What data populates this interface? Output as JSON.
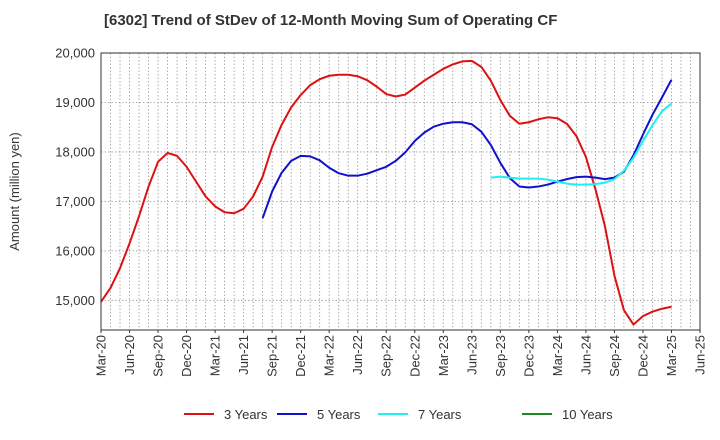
{
  "chart_data": {
    "type": "line",
    "title": "[6302]  Trend of StDev of 12-Month Moving Sum of Operating CF",
    "xlabel": "",
    "ylabel": "Amount (million yen)",
    "ylim": [
      14400,
      20000
    ],
    "yticks": [
      15000,
      16000,
      17000,
      18000,
      19000,
      20000
    ],
    "ytick_labels": [
      "15,000",
      "16,000",
      "17,000",
      "18,000",
      "19,000",
      "20,000"
    ],
    "xticks": [
      "Mar-20",
      "Jun-20",
      "Sep-20",
      "Dec-20",
      "Mar-21",
      "Jun-21",
      "Sep-21",
      "Dec-21",
      "Mar-22",
      "Jun-22",
      "Sep-22",
      "Dec-22",
      "Mar-23",
      "Jun-23",
      "Sep-23",
      "Dec-23",
      "Mar-24",
      "Jun-24",
      "Sep-24",
      "Dec-24",
      "Mar-25",
      "Jun-25"
    ],
    "x_start": "2020-03",
    "x_end": "2025-06",
    "grid": true,
    "legend_position": "bottom",
    "series": [
      {
        "name": "3 Years",
        "color": "#dd1111",
        "points": [
          [
            "2020-03",
            14970
          ],
          [
            "2020-04",
            15250
          ],
          [
            "2020-05",
            15650
          ],
          [
            "2020-06",
            16150
          ],
          [
            "2020-07",
            16700
          ],
          [
            "2020-08",
            17300
          ],
          [
            "2020-09",
            17800
          ],
          [
            "2020-10",
            17980
          ],
          [
            "2020-11",
            17920
          ],
          [
            "2020-12",
            17700
          ],
          [
            "2021-01",
            17400
          ],
          [
            "2021-02",
            17100
          ],
          [
            "2021-03",
            16900
          ],
          [
            "2021-04",
            16780
          ],
          [
            "2021-05",
            16760
          ],
          [
            "2021-06",
            16850
          ],
          [
            "2021-07",
            17100
          ],
          [
            "2021-08",
            17500
          ],
          [
            "2021-09",
            18100
          ],
          [
            "2021-10",
            18550
          ],
          [
            "2021-11",
            18900
          ],
          [
            "2021-12",
            19150
          ],
          [
            "2022-01",
            19350
          ],
          [
            "2022-02",
            19470
          ],
          [
            "2022-03",
            19540
          ],
          [
            "2022-04",
            19560
          ],
          [
            "2022-05",
            19560
          ],
          [
            "2022-06",
            19530
          ],
          [
            "2022-07",
            19450
          ],
          [
            "2022-08",
            19320
          ],
          [
            "2022-09",
            19170
          ],
          [
            "2022-10",
            19120
          ],
          [
            "2022-11",
            19160
          ],
          [
            "2022-12",
            19300
          ],
          [
            "2023-01",
            19440
          ],
          [
            "2023-02",
            19560
          ],
          [
            "2023-03",
            19680
          ],
          [
            "2023-04",
            19770
          ],
          [
            "2023-05",
            19830
          ],
          [
            "2023-06",
            19840
          ],
          [
            "2023-07",
            19720
          ],
          [
            "2023-08",
            19440
          ],
          [
            "2023-09",
            19050
          ],
          [
            "2023-10",
            18730
          ],
          [
            "2023-11",
            18570
          ],
          [
            "2023-12",
            18600
          ],
          [
            "2024-01",
            18660
          ],
          [
            "2024-02",
            18700
          ],
          [
            "2024-03",
            18680
          ],
          [
            "2024-04",
            18570
          ],
          [
            "2024-05",
            18320
          ],
          [
            "2024-06",
            17900
          ],
          [
            "2024-07",
            17250
          ],
          [
            "2024-08",
            16500
          ],
          [
            "2024-09",
            15500
          ],
          [
            "2024-10",
            14800
          ],
          [
            "2024-11",
            14510
          ],
          [
            "2024-12",
            14680
          ],
          [
            "2025-01",
            14770
          ],
          [
            "2025-02",
            14830
          ],
          [
            "2025-03",
            14870
          ]
        ]
      },
      {
        "name": "5 Years",
        "color": "#1111cc",
        "points": [
          [
            "2021-08",
            16660
          ],
          [
            "2021-09",
            17200
          ],
          [
            "2021-10",
            17580
          ],
          [
            "2021-11",
            17820
          ],
          [
            "2021-12",
            17920
          ],
          [
            "2022-01",
            17910
          ],
          [
            "2022-02",
            17830
          ],
          [
            "2022-03",
            17680
          ],
          [
            "2022-04",
            17570
          ],
          [
            "2022-05",
            17520
          ],
          [
            "2022-06",
            17520
          ],
          [
            "2022-07",
            17560
          ],
          [
            "2022-08",
            17630
          ],
          [
            "2022-09",
            17700
          ],
          [
            "2022-10",
            17820
          ],
          [
            "2022-11",
            17990
          ],
          [
            "2022-12",
            18220
          ],
          [
            "2023-01",
            18390
          ],
          [
            "2023-02",
            18510
          ],
          [
            "2023-03",
            18570
          ],
          [
            "2023-04",
            18600
          ],
          [
            "2023-05",
            18600
          ],
          [
            "2023-06",
            18560
          ],
          [
            "2023-07",
            18410
          ],
          [
            "2023-08",
            18140
          ],
          [
            "2023-09",
            17780
          ],
          [
            "2023-10",
            17470
          ],
          [
            "2023-11",
            17300
          ],
          [
            "2023-12",
            17280
          ],
          [
            "2024-01",
            17300
          ],
          [
            "2024-02",
            17340
          ],
          [
            "2024-03",
            17400
          ],
          [
            "2024-04",
            17450
          ],
          [
            "2024-05",
            17490
          ],
          [
            "2024-06",
            17500
          ],
          [
            "2024-07",
            17480
          ],
          [
            "2024-08",
            17450
          ],
          [
            "2024-09",
            17480
          ],
          [
            "2024-10",
            17600
          ],
          [
            "2024-11",
            17930
          ],
          [
            "2024-12",
            18350
          ],
          [
            "2025-01",
            18750
          ],
          [
            "2025-02",
            19100
          ],
          [
            "2025-03",
            19460
          ]
        ]
      },
      {
        "name": "7 Years",
        "color": "#22eeee",
        "points": [
          [
            "2023-08",
            17480
          ],
          [
            "2023-09",
            17500
          ],
          [
            "2023-10",
            17480
          ],
          [
            "2023-11",
            17460
          ],
          [
            "2023-12",
            17460
          ],
          [
            "2024-01",
            17460
          ],
          [
            "2024-02",
            17440
          ],
          [
            "2024-03",
            17400
          ],
          [
            "2024-04",
            17360
          ],
          [
            "2024-05",
            17340
          ],
          [
            "2024-06",
            17340
          ],
          [
            "2024-07",
            17350
          ],
          [
            "2024-08",
            17380
          ],
          [
            "2024-09",
            17450
          ],
          [
            "2024-10",
            17620
          ],
          [
            "2024-11",
            17880
          ],
          [
            "2024-12",
            18220
          ],
          [
            "2025-01",
            18540
          ],
          [
            "2025-02",
            18820
          ],
          [
            "2025-03",
            18980
          ]
        ]
      },
      {
        "name": "10 Years",
        "color": "#228822",
        "points": []
      }
    ]
  }
}
